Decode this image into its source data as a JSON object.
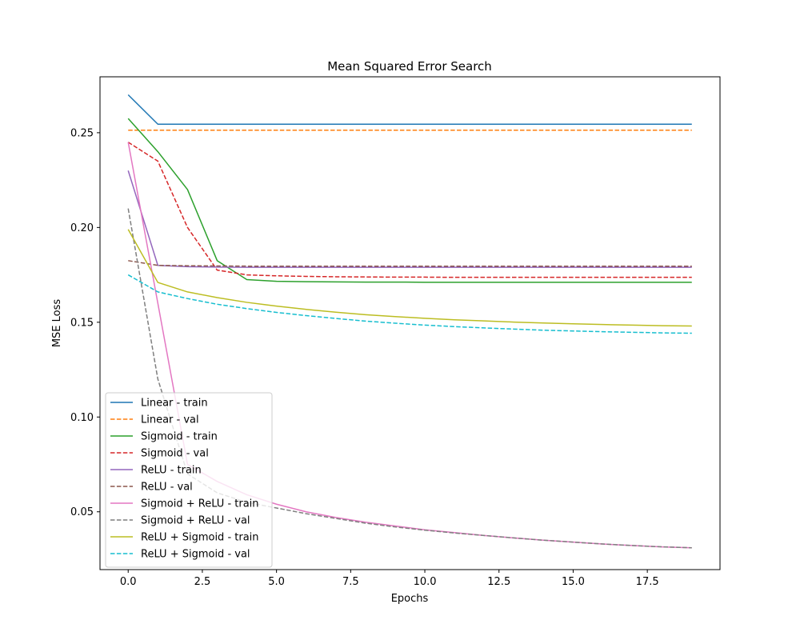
{
  "chart_data": {
    "type": "line",
    "title": "Mean Squared Error Search",
    "xlabel": "Epochs",
    "ylabel": "MSE Loss",
    "xlim": [
      -0.95,
      19.95
    ],
    "ylim": [
      0.0195,
      0.2795
    ],
    "xticks": [
      0.0,
      2.5,
      5.0,
      7.5,
      10.0,
      12.5,
      15.0,
      17.5
    ],
    "xtick_labels": [
      "0.0",
      "2.5",
      "5.0",
      "7.5",
      "10.0",
      "12.5",
      "15.0",
      "17.5"
    ],
    "yticks": [
      0.05,
      0.1,
      0.15,
      0.2,
      0.25
    ],
    "ytick_labels": [
      "0.05",
      "0.10",
      "0.15",
      "0.20",
      "0.25"
    ],
    "grid": false,
    "legend_position": "lower-left",
    "x": [
      0,
      1,
      2,
      3,
      4,
      5,
      6,
      7,
      8,
      9,
      10,
      11,
      12,
      13,
      14,
      15,
      16,
      17,
      18,
      19
    ],
    "series": [
      {
        "name": "Linear - train",
        "color": "#1f77b4",
        "style": "solid",
        "values": [
          0.27,
          0.2545,
          0.2545,
          0.2545,
          0.2545,
          0.2545,
          0.2545,
          0.2545,
          0.2545,
          0.2545,
          0.2545,
          0.2545,
          0.2545,
          0.2545,
          0.2545,
          0.2545,
          0.2545,
          0.2545,
          0.2545,
          0.2545
        ]
      },
      {
        "name": "Linear - val",
        "color": "#ff7f0e",
        "style": "dashed",
        "values": [
          0.2513,
          0.2513,
          0.2513,
          0.2513,
          0.2513,
          0.2513,
          0.2513,
          0.2513,
          0.2513,
          0.2513,
          0.2513,
          0.2513,
          0.2513,
          0.2513,
          0.2513,
          0.2513,
          0.2513,
          0.2513,
          0.2513,
          0.2513
        ]
      },
      {
        "name": "Sigmoid - train",
        "color": "#2ca02c",
        "style": "solid",
        "values": [
          0.2575,
          0.24,
          0.22,
          0.1825,
          0.1725,
          0.1716,
          0.1714,
          0.1713,
          0.1712,
          0.1712,
          0.1711,
          0.1711,
          0.1711,
          0.1711,
          0.1711,
          0.1711,
          0.1711,
          0.1711,
          0.1711,
          0.1711
        ]
      },
      {
        "name": "Sigmoid - val",
        "color": "#d62728",
        "style": "dashed",
        "values": [
          0.245,
          0.235,
          0.2,
          0.1775,
          0.175,
          0.1745,
          0.1742,
          0.174,
          0.1739,
          0.1738,
          0.1738,
          0.1737,
          0.1737,
          0.1737,
          0.1737,
          0.1737,
          0.1737,
          0.1737,
          0.1737,
          0.1737
        ]
      },
      {
        "name": "ReLU - train",
        "color": "#9467bd",
        "style": "solid",
        "values": [
          0.23,
          0.18,
          0.1793,
          0.1791,
          0.179,
          0.179,
          0.179,
          0.179,
          0.179,
          0.179,
          0.179,
          0.179,
          0.179,
          0.179,
          0.179,
          0.179,
          0.179,
          0.179,
          0.179,
          0.179
        ]
      },
      {
        "name": "ReLU - val",
        "color": "#8c564b",
        "style": "dashed",
        "values": [
          0.1825,
          0.18,
          0.1798,
          0.1797,
          0.1796,
          0.1796,
          0.1796,
          0.1796,
          0.1796,
          0.1796,
          0.1796,
          0.1796,
          0.1796,
          0.1796,
          0.1796,
          0.1796,
          0.1796,
          0.1796,
          0.1796,
          0.1796
        ]
      },
      {
        "name": "Sigmoid + ReLU - train",
        "color": "#e377c2",
        "style": "solid",
        "values": [
          0.245,
          0.16,
          0.075,
          0.066,
          0.059,
          0.054,
          0.05,
          0.047,
          0.0445,
          0.0425,
          0.0405,
          0.039,
          0.0375,
          0.0362,
          0.035,
          0.034,
          0.033,
          0.0322,
          0.0315,
          0.031
        ]
      },
      {
        "name": "Sigmoid + ReLU - val",
        "color": "#7f7f7f",
        "style": "dashed",
        "values": [
          0.21,
          0.12,
          0.07,
          0.06,
          0.055,
          0.052,
          0.049,
          0.0465,
          0.044,
          0.042,
          0.0403,
          0.0388,
          0.0375,
          0.0362,
          0.035,
          0.034,
          0.033,
          0.0322,
          0.0315,
          0.031
        ]
      },
      {
        "name": "ReLU + Sigmoid - train",
        "color": "#bcbd22",
        "style": "solid",
        "values": [
          0.199,
          0.171,
          0.166,
          0.163,
          0.1605,
          0.1585,
          0.1568,
          0.1553,
          0.154,
          0.153,
          0.1521,
          0.1513,
          0.1507,
          0.1501,
          0.1496,
          0.1492,
          0.1488,
          0.1485,
          0.1482,
          0.148
        ]
      },
      {
        "name": "ReLU + Sigmoid - val",
        "color": "#17becf",
        "style": "dashed",
        "values": [
          0.175,
          0.166,
          0.1625,
          0.1595,
          0.1572,
          0.1552,
          0.1535,
          0.152,
          0.1506,
          0.1495,
          0.1485,
          0.1477,
          0.147,
          0.1464,
          0.1458,
          0.1454,
          0.145,
          0.1447,
          0.1444,
          0.1442
        ]
      }
    ]
  }
}
